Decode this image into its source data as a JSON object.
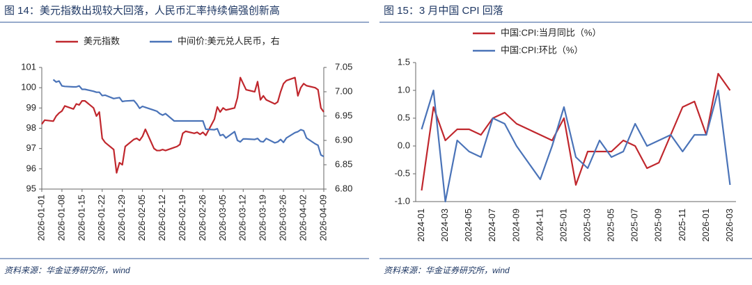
{
  "chart_data": [
    {
      "type": "line",
      "title": "图 14：美元指数出现较大回落，人民币汇率持续偏强创新高",
      "source": "资料来源：华金证券研究所，wind",
      "legend": "top",
      "x": [
        "2026-01-01",
        "2026-01-02",
        "2026-01-05",
        "2026-01-06",
        "2026-01-07",
        "2026-01-08",
        "2026-01-09",
        "2026-01-12",
        "2026-01-13",
        "2026-01-14",
        "2026-01-15",
        "2026-01-16",
        "2026-01-19",
        "2026-01-20",
        "2026-01-21",
        "2026-01-22",
        "2026-01-23",
        "2026-01-26",
        "2026-01-27",
        "2026-01-28",
        "2026-01-29",
        "2026-01-30",
        "2026-02-02",
        "2026-02-03",
        "2026-02-04",
        "2026-02-05",
        "2026-02-06",
        "2026-02-09",
        "2026-02-10",
        "2026-02-11",
        "2026-02-12",
        "2026-02-13",
        "2026-02-16",
        "2026-02-17",
        "2026-02-18",
        "2026-02-19",
        "2026-02-20",
        "2026-02-23",
        "2026-02-24",
        "2026-02-25",
        "2026-02-26",
        "2026-02-27",
        "2026-03-02",
        "2026-03-03",
        "2026-03-04",
        "2026-03-05",
        "2026-03-06",
        "2026-03-09",
        "2026-03-10",
        "2026-03-11",
        "2026-03-12",
        "2026-03-13",
        "2026-03-16",
        "2026-03-17",
        "2026-03-18",
        "2026-03-19",
        "2026-03-20",
        "2026-03-23",
        "2026-03-24",
        "2026-03-25",
        "2026-03-26",
        "2026-03-27",
        "2026-03-30",
        "2026-03-31",
        "2026-04-01",
        "2026-04-02",
        "2026-04-03",
        "2026-04-06",
        "2026-04-07",
        "2026-04-08",
        "2026-04-09"
      ],
      "xlim": [
        "2026-01-01",
        "2026-04-09"
      ],
      "xticks": [
        "2026-01-01",
        "2026-01-08",
        "2026-01-15",
        "2026-01-22",
        "2026-01-29",
        "2026-02-05",
        "2026-02-12",
        "2026-02-19",
        "2026-02-26",
        "2026-03-05",
        "2026-03-12",
        "2026-03-19",
        "2026-03-26",
        "2026-04-02",
        "2026-04-09"
      ],
      "ylim": [
        95,
        101
      ],
      "yticks": [
        95,
        96,
        97,
        98,
        99,
        100,
        101
      ],
      "y2lim": [
        6.8,
        7.05
      ],
      "y2ticks": [
        {
          "value": 6.8,
          "label": "6.80"
        },
        6.85,
        {
          "value": 6.9,
          "label": "6.90"
        },
        6.95,
        {
          "value": 7.0,
          "label": "7.00"
        },
        7.05
      ],
      "series": [
        {
          "name": "美元指数",
          "color": "#c0272d",
          "values": [
            98.2,
            98.4,
            98.35,
            98.6,
            98.75,
            98.85,
            99.1,
            98.95,
            99.2,
            99.15,
            99.35,
            99.35,
            99.0,
            98.6,
            98.8,
            97.5,
            97.3,
            96.95,
            95.8,
            96.3,
            96.2,
            97.1,
            97.45,
            97.5,
            97.4,
            97.6,
            97.95,
            97.0,
            96.9,
            96.9,
            96.95,
            96.9,
            97.05,
            97.1,
            97.2,
            97.75,
            97.85,
            97.75,
            97.8,
            97.7,
            97.8,
            97.65,
            98.45,
            99.05,
            98.8,
            99.0,
            98.9,
            99.0,
            99.5,
            100.5,
            100.2,
            99.9,
            99.8,
            100.3,
            99.4,
            99.6,
            99.4,
            99.2,
            99.3,
            99.8,
            100.2,
            100.35,
            100.5,
            99.6,
            100.0,
            100.2,
            100.1,
            100.0,
            99.9,
            99.0,
            98.8
          ]
        },
        {
          "name": "中间价:美元兑人民币，右",
          "color": "#4a73b8",
          "axis": "y2",
          "values": [
            null,
            null,
            7.025,
            7.02,
            7.022,
            7.012,
            7.011,
            7.01,
            7.01,
            7.012,
            7.005,
            7.005,
            7.001,
            6.999,
            6.999,
            6.992,
            6.993,
            6.986,
            6.987,
            6.988,
            6.98,
            6.981,
            6.982,
            6.975,
            6.966,
            6.97,
            6.968,
            6.962,
            6.96,
            6.955,
            6.952,
            6.955,
            6.94,
            6.94,
            6.94,
            6.94,
            6.94,
            6.94,
            6.94,
            6.94,
            6.94,
            6.923,
            6.922,
            6.924,
            6.91,
            6.912,
            6.905,
            6.918,
            6.9,
            6.897,
            6.903,
            6.903,
            6.902,
            6.904,
            6.898,
            6.897,
            6.904,
            6.895,
            6.897,
            6.902,
            6.896,
            6.905,
            6.916,
            6.918,
            6.922,
            6.92,
            6.905,
            6.893,
            6.89,
            6.87,
            6.867
          ]
        }
      ]
    },
    {
      "type": "line",
      "title": "图 15：3 月中国 CPI 回落",
      "source": "资料来源：华金证券研究所，wind",
      "legend": "upper left",
      "categories": [
        "2024-01",
        null,
        "2024-03",
        null,
        "2024-05",
        null,
        "2024-07",
        null,
        "2024-09",
        null,
        "2024-11",
        null,
        "2025-01",
        null,
        "2025-03",
        null,
        "2025-05",
        null,
        "2025-07",
        null,
        "2025-09",
        null,
        "2025-11",
        null,
        "2026-01",
        null,
        "2026-03"
      ],
      "ylim": [
        -1.0,
        1.5
      ],
      "yticks": [
        {
          "value": -1.0,
          "label": "-1.0"
        },
        -0.5,
        {
          "value": 0.0,
          "label": "0.0"
        },
        0.5,
        {
          "value": 1.0,
          "label": "1.0"
        },
        1.5
      ],
      "series": [
        {
          "name": "中国:CPI:当月同比（%）",
          "color": "#c0272d",
          "values": [
            -0.8,
            0.7,
            0.1,
            0.3,
            0.3,
            0.2,
            0.5,
            0.6,
            0.4,
            0.3,
            0.2,
            0.1,
            0.5,
            -0.7,
            -0.1,
            -0.1,
            -0.1,
            0.1,
            0.0,
            -0.4,
            -0.3,
            0.2,
            0.7,
            0.8,
            0.2,
            1.3,
            1.0
          ]
        },
        {
          "name": "中国:CPI:环比（%）",
          "color": "#4a73b8",
          "values": [
            0.3,
            1.0,
            -1.0,
            0.1,
            -0.1,
            -0.2,
            0.5,
            0.4,
            0.0,
            -0.3,
            -0.6,
            0.0,
            0.7,
            -0.2,
            -0.4,
            0.1,
            -0.2,
            -0.1,
            0.4,
            0.0,
            0.1,
            0.2,
            -0.1,
            0.2,
            0.2,
            1.0,
            -0.7
          ]
        }
      ]
    }
  ]
}
